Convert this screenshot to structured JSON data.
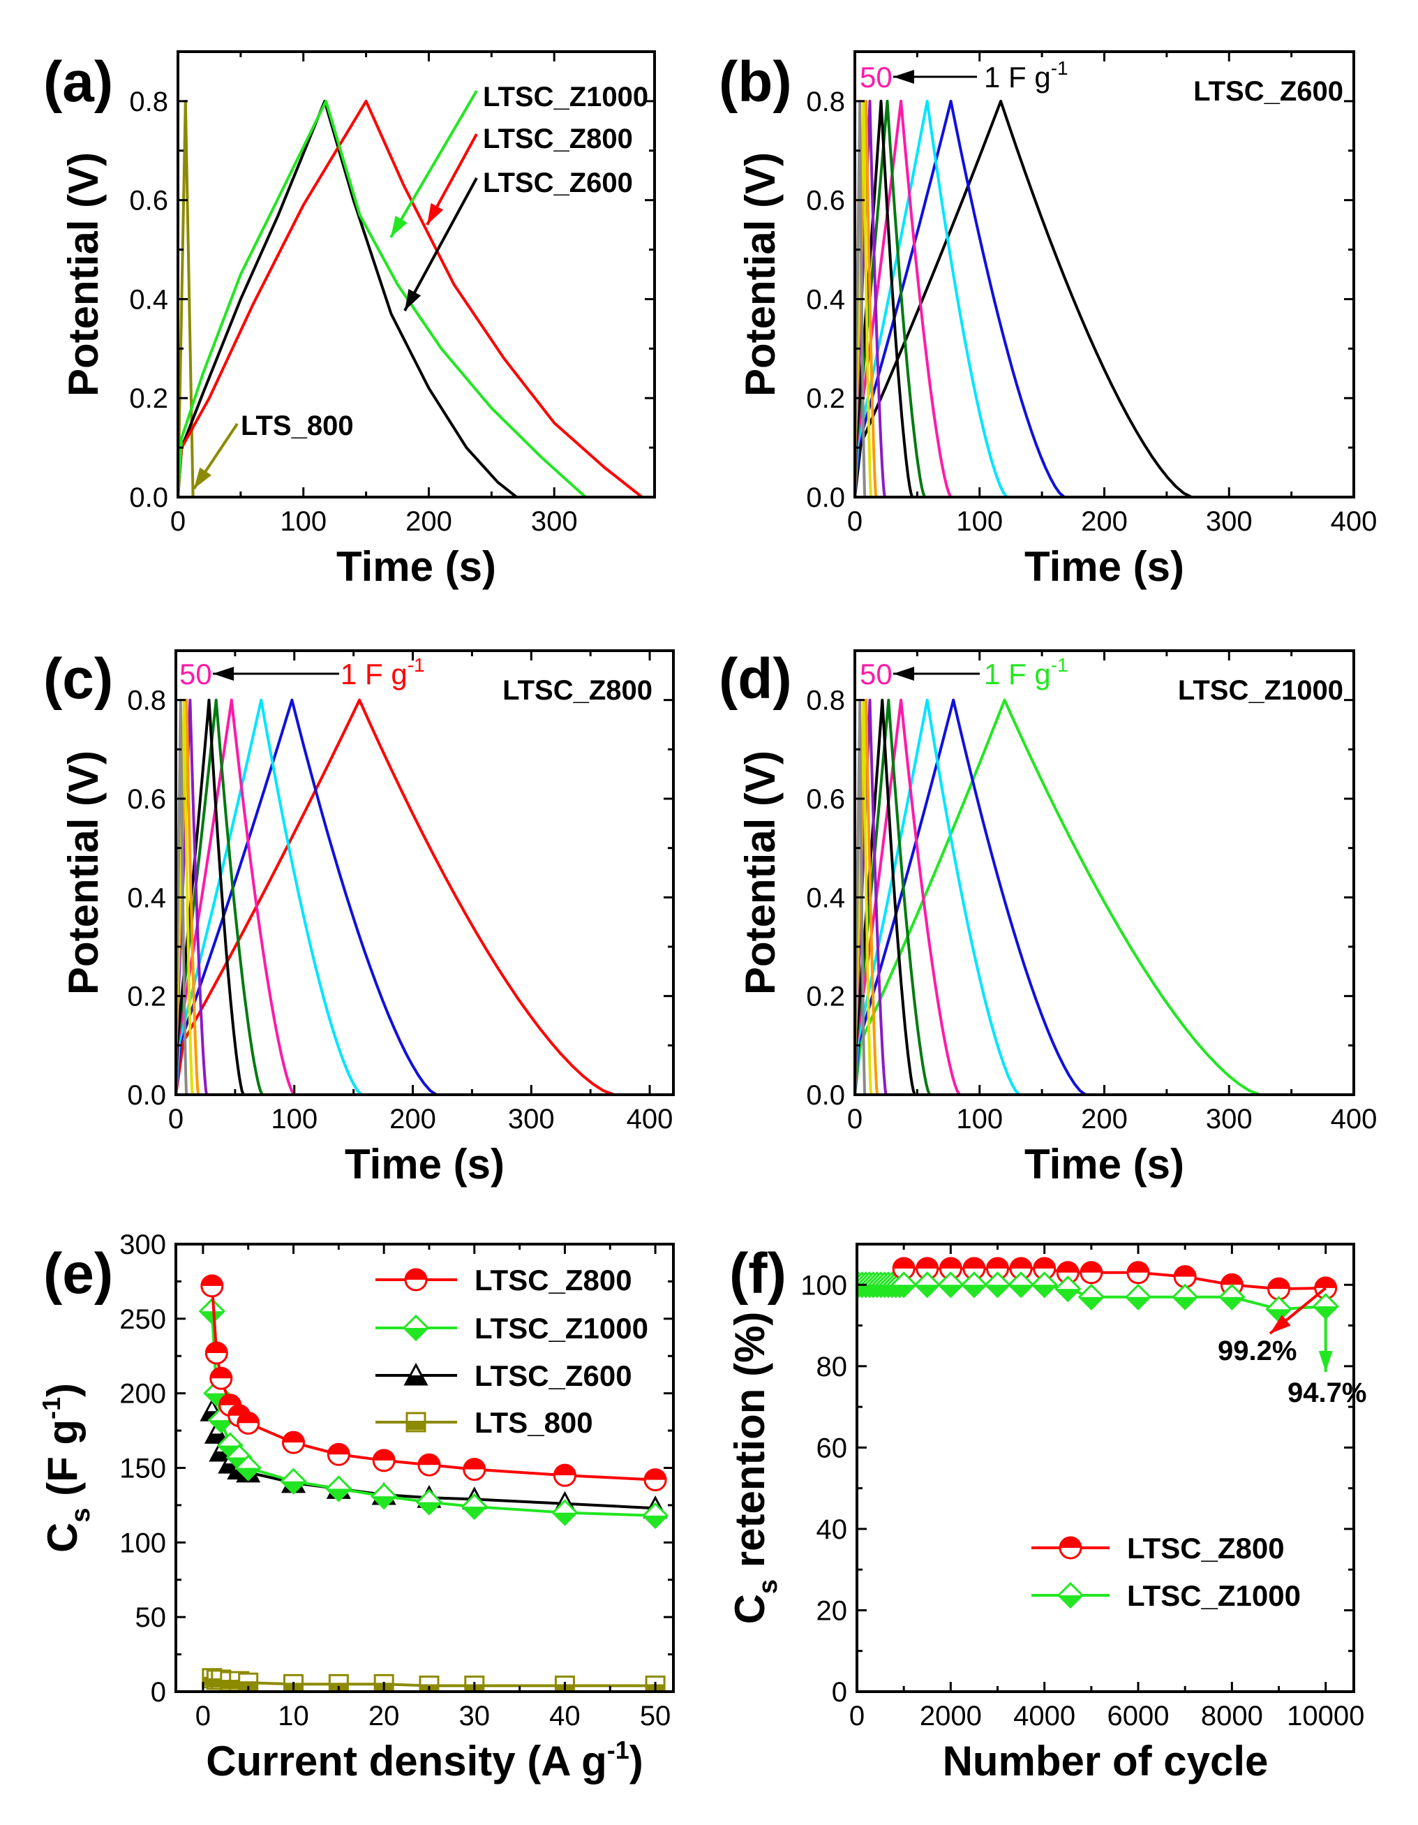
{
  "figure": {
    "colors": {
      "black": "#000000",
      "red": "#ff0000",
      "green": "#22e622",
      "olive": "#8c8a00",
      "cyan": "#00e5ff",
      "blue": "#1010dd",
      "magenta": "#ff1aa8",
      "darkgreen": "#007a10",
      "purple": "#8a1ac8",
      "yellow": "#e0e000",
      "orange": "#ff9900",
      "gray": "#8a8a8a"
    }
  },
  "chart_data": [
    {
      "panel": "(a)",
      "type": "line",
      "xlabel": "Time (s)",
      "ylabel": "Potential (V)",
      "xlim": [
        0,
        380
      ],
      "ylim": [
        0,
        0.9
      ],
      "xticks": [
        0,
        100,
        200,
        300
      ],
      "yticks": [
        0.0,
        0.2,
        0.4,
        0.6,
        0.8
      ],
      "series": [
        {
          "name": "LTS_800",
          "color": "#8c8a00",
          "x": [
            0,
            6,
            12
          ],
          "y": [
            0.0,
            0.8,
            0.0
          ]
        },
        {
          "name": "LTSC_Z600",
          "color": "#000000",
          "x": [
            0,
            3,
            20,
            50,
            80,
            117,
            140,
            170,
            200,
            230,
            255,
            270
          ],
          "y": [
            0,
            0.1,
            0.21,
            0.4,
            0.57,
            0.8,
            0.6,
            0.37,
            0.22,
            0.1,
            0.03,
            0
          ]
        },
        {
          "name": "LTSC_Z800",
          "color": "#ff0000",
          "x": [
            0,
            3,
            25,
            60,
            100,
            150,
            180,
            220,
            260,
            300,
            340,
            370
          ],
          "y": [
            0,
            0.1,
            0.2,
            0.39,
            0.59,
            0.8,
            0.63,
            0.43,
            0.28,
            0.15,
            0.06,
            0
          ]
        },
        {
          "name": "LTSC_Z1000",
          "color": "#22e622",
          "x": [
            0,
            3,
            20,
            50,
            85,
            118,
            145,
            175,
            210,
            250,
            290,
            325
          ],
          "y": [
            0,
            0.12,
            0.25,
            0.45,
            0.63,
            0.8,
            0.57,
            0.43,
            0.3,
            0.18,
            0.08,
            0
          ]
        }
      ],
      "annotations": [
        "LTSC_Z1000",
        "LTSC_Z800",
        "LTSC_Z600",
        "LTS_800"
      ]
    },
    {
      "panel": "(b)",
      "type": "line",
      "xlabel": "Time (s)",
      "ylabel": "Potential (V)",
      "xlim": [
        0,
        400
      ],
      "ylim": [
        0,
        0.9
      ],
      "xticks": [
        0,
        100,
        200,
        300,
        400
      ],
      "yticks": [
        0.0,
        0.2,
        0.4,
        0.6,
        0.8
      ],
      "title": "LTSC_Z600",
      "arrow_from": "1 F g",
      "arrow_from_exp": "-1",
      "arrow_to": "50",
      "series": [
        {
          "peak": 117,
          "end": 270,
          "color": "#000000"
        },
        {
          "peak": 77,
          "end": 168,
          "color": "#1010dd"
        },
        {
          "peak": 58,
          "end": 122,
          "color": "#00e5ff"
        },
        {
          "peak": 37,
          "end": 77,
          "color": "#ff1aa8"
        },
        {
          "peak": 26,
          "end": 56,
          "color": "#007a10"
        },
        {
          "peak": 21,
          "end": 46,
          "color": "#000000"
        },
        {
          "peak": 12,
          "end": 24,
          "color": "#8a1ac8"
        },
        {
          "peak": 9,
          "end": 17,
          "color": "#ff9900"
        },
        {
          "peak": 7,
          "end": 13,
          "color": "#e0e000"
        },
        {
          "peak": 4,
          "end": 8,
          "color": "#8a8a8a"
        }
      ]
    },
    {
      "panel": "(c)",
      "type": "line",
      "xlabel": "Time (s)",
      "ylabel": "Potential (V)",
      "xlim": [
        0,
        420
      ],
      "ylim": [
        0,
        0.9
      ],
      "xticks": [
        0,
        100,
        200,
        300,
        400
      ],
      "yticks": [
        0.0,
        0.2,
        0.4,
        0.6,
        0.8
      ],
      "title": "LTSC_Z800",
      "arrow_from": "1 F g",
      "arrow_from_exp": "-1",
      "arrow_to": "50",
      "series": [
        {
          "peak": 155,
          "end": 370,
          "color": "#ff0000"
        },
        {
          "peak": 98,
          "end": 220,
          "color": "#1010dd"
        },
        {
          "peak": 72,
          "end": 157,
          "color": "#00e5ff"
        },
        {
          "peak": 47,
          "end": 100,
          "color": "#ff1aa8"
        },
        {
          "peak": 34,
          "end": 73,
          "color": "#007a10"
        },
        {
          "peak": 28,
          "end": 57,
          "color": "#000000"
        },
        {
          "peak": 12,
          "end": 26,
          "color": "#8a1ac8"
        },
        {
          "peak": 9,
          "end": 19,
          "color": "#ff9900"
        },
        {
          "peak": 7,
          "end": 14,
          "color": "#e0e000"
        },
        {
          "peak": 4,
          "end": 9,
          "color": "#8a8a8a"
        }
      ]
    },
    {
      "panel": "(d)",
      "type": "line",
      "xlabel": "Time (s)",
      "ylabel": "Potential (V)",
      "xlim": [
        0,
        400
      ],
      "ylim": [
        0,
        0.9
      ],
      "xticks": [
        0,
        100,
        200,
        300,
        400
      ],
      "yticks": [
        0.0,
        0.2,
        0.4,
        0.6,
        0.8
      ],
      "title": "LTSC_Z1000",
      "arrow_from": "1 F g",
      "arrow_from_exp": "-1",
      "arrow_to": "50",
      "series": [
        {
          "peak": 120,
          "end": 325,
          "color": "#22e622"
        },
        {
          "peak": 79,
          "end": 185,
          "color": "#1010dd"
        },
        {
          "peak": 58,
          "end": 132,
          "color": "#00e5ff"
        },
        {
          "peak": 37,
          "end": 84,
          "color": "#ff1aa8"
        },
        {
          "peak": 27,
          "end": 60,
          "color": "#007a10"
        },
        {
          "peak": 22,
          "end": 48,
          "color": "#000000"
        },
        {
          "peak": 12,
          "end": 25,
          "color": "#8a1ac8"
        },
        {
          "peak": 9,
          "end": 18,
          "color": "#ff9900"
        },
        {
          "peak": 7,
          "end": 13,
          "color": "#e0e000"
        },
        {
          "peak": 4,
          "end": 8,
          "color": "#8a8a8a"
        }
      ]
    },
    {
      "panel": "(e)",
      "type": "line",
      "xlabel": "Current density  (A g",
      "xlabel_sup": "-1",
      "xlabel_end": ")",
      "ylabel": "C",
      "ylabel_sub": "s",
      "ylabel_mid": " (F g",
      "ylabel_sup": "-1",
      "ylabel_end": ")",
      "xlim": [
        -3,
        52
      ],
      "ylim": [
        0,
        300
      ],
      "xticks": [
        0,
        10,
        20,
        30,
        40,
        50
      ],
      "yticks": [
        0,
        50,
        100,
        150,
        200,
        250,
        300
      ],
      "x": [
        1,
        1.5,
        2,
        3,
        4,
        5,
        10,
        15,
        20,
        25,
        30,
        40,
        50
      ],
      "series": [
        {
          "name": "LTSC_Z800",
          "color": "#ff0000",
          "marker": "circle-half",
          "values": [
            272,
            227,
            210,
            192,
            185,
            180,
            167,
            159,
            155,
            152,
            149,
            145,
            142
          ]
        },
        {
          "name": "LTSC_Z1000",
          "color": "#22e622",
          "marker": "diamond-half",
          "values": [
            255,
            200,
            182,
            165,
            157,
            150,
            141,
            136,
            131,
            127,
            124,
            120,
            118
          ]
        },
        {
          "name": "LTSC_Z600",
          "color": "#000000",
          "marker": "triangle-half",
          "values": [
            188,
            173,
            161,
            153,
            149,
            147,
            140,
            136,
            132,
            130,
            129,
            126,
            123
          ]
        },
        {
          "name": "LTS_800",
          "color": "#8c8a00",
          "marker": "square-half",
          "values": [
            9,
            8,
            8,
            7,
            7,
            6,
            5,
            5,
            5,
            4,
            4,
            4,
            4
          ]
        }
      ]
    },
    {
      "panel": "(f)",
      "type": "line",
      "xlabel": "Number of cycle",
      "ylabel": "C",
      "ylabel_sub": "s",
      "ylabel_end": " retention (%)",
      "xlim": [
        0,
        10600
      ],
      "ylim": [
        0,
        110
      ],
      "xticks": [
        0,
        2000,
        4000,
        6000,
        8000,
        10000
      ],
      "yticks": [
        0,
        20,
        40,
        60,
        80,
        100
      ],
      "series": [
        {
          "name": "LTSC_Z800",
          "color": "#ff0000",
          "marker": "circle-half",
          "x": [
            1000,
            1500,
            2000,
            2500,
            3000,
            3500,
            4000,
            4500,
            5000,
            6000,
            7000,
            8000,
            9000,
            10000
          ],
          "values": [
            104,
            104,
            104,
            104,
            104,
            104,
            104,
            103,
            103,
            103,
            102,
            100,
            99,
            99.2
          ]
        },
        {
          "name": "LTSC_Z1000",
          "color": "#22e622",
          "marker": "diamond-half",
          "x": [
            1000,
            1500,
            2000,
            2500,
            3000,
            3500,
            4000,
            4500,
            5000,
            6000,
            7000,
            8000,
            9000,
            10000
          ],
          "values": [
            100,
            100,
            100,
            100,
            100,
            100,
            100,
            99,
            97,
            97,
            97,
            97,
            94,
            94.7
          ]
        }
      ],
      "labels": [
        "99.2%",
        "94.7%"
      ]
    }
  ]
}
